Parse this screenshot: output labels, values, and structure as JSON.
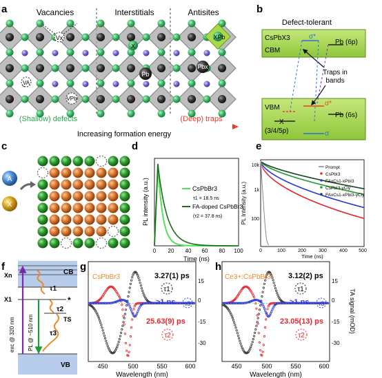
{
  "panel_labels": {
    "a": "a",
    "b": "b",
    "c": "c",
    "d": "d",
    "e": "e",
    "f": "f",
    "g": "g",
    "h": "h"
  },
  "panel_a": {
    "headers": [
      "Vacancies",
      "Interstitials",
      "Antisites"
    ],
    "sites": {
      "vx_top": "Vx",
      "x_int": "X",
      "xpb": "XPb",
      "pb_int": "Pb",
      "pbx": "Pbx",
      "va": "VA",
      "vpb": "VPb"
    },
    "shallow": "(Shallow) defects",
    "deep": "(Deep) traps",
    "arrow_text": "Increasing formation energy",
    "colors": {
      "green": "#2aa84a",
      "red": "#e8412c",
      "octa": "#9a9a9a",
      "xpb_box": "#a9d84a"
    }
  },
  "panel_b": {
    "title": "Defect-tolerant",
    "material": "CsPbX3",
    "cbm": "CBM",
    "vbm": "VBM",
    "sigma_star_top": "σ*",
    "sigma_star_bottom": "σ*",
    "sigma": "σ",
    "pb6p": "Pb (6p)",
    "pb6s": "Pb (6s)",
    "x_level": "X",
    "x_orbital": "(3/4/5p)",
    "traps_line1": "Traps in",
    "traps_line2": "bands",
    "colors": {
      "band": "#9bd13a",
      "band_edge": "#5c8a1e"
    }
  },
  "panel_c": {
    "a_label": "A",
    "x_label": "X",
    "colors": {
      "a": "#4a8fd6",
      "x": "#d9a521",
      "green": "#2e9c2e",
      "orange": "#d9772e"
    }
  },
  "panel_d": {
    "ylabel": "PL intensity (a.u.)",
    "xlabel": "Time (ns)",
    "xticks": [
      "0",
      "20",
      "40",
      "60",
      "80",
      "100"
    ],
    "legend": [
      "CsPbBr3",
      "τ1 = 18.5 ns",
      "FA-doped CsPbBr3",
      "(τ2 = 37.8 ns)"
    ]
  },
  "panel_e": {
    "ylabel": "PL Intensity (a.u.)",
    "xlabel": "Time (ns)",
    "xticks": [
      "0",
      "100",
      "200",
      "300",
      "400",
      "500"
    ],
    "yticks": [
      "10k",
      "1k",
      "100"
    ],
    "legend": [
      "Prompt",
      "CsPbI3",
      "FAxCs1-xPbI3",
      "CsPbI3-yCly",
      "FAxCs1-xPbI3-yCly"
    ]
  },
  "panel_f": {
    "cb": "CB",
    "vb": "VB",
    "ts": "TS",
    "xn": "Xn",
    "x1": "X1",
    "star": "*",
    "exc": "exc @ 320 nm",
    "pl": "PL @ ~510 nm",
    "tau1": "τ1",
    "tau2": "τ2",
    "tau3": "τ3"
  },
  "panel_g": {
    "material": "CsPbBr3",
    "t1": "3.27(1) ps",
    "t2": "25.63(9) ps",
    "t3": ">1 ns",
    "tau1": "τ1",
    "tau2": "τ2",
    "tau3": "τ3",
    "xlabel": "Wavelength (nm)",
    "ylabel": "TA signal (mOD)",
    "xticks": [
      "450",
      "500",
      "550",
      "600"
    ],
    "yticks": [
      "15",
      "0",
      "-15",
      "-30"
    ]
  },
  "panel_h": {
    "material": "Ce3+:CsPbBr3",
    "t1": "3.12(2) ps",
    "t2": "23.05(13) ps",
    "t3": ">1 ns",
    "tau1": "τ1",
    "tau2": "τ2",
    "tau3": "τ3",
    "xlabel": "Wavelength (nm)",
    "ylabel": "TA signal (mOD)",
    "xticks": [
      "450",
      "500",
      "550",
      "600"
    ],
    "yticks": [
      "15",
      "0",
      "-15",
      "-30"
    ]
  }
}
